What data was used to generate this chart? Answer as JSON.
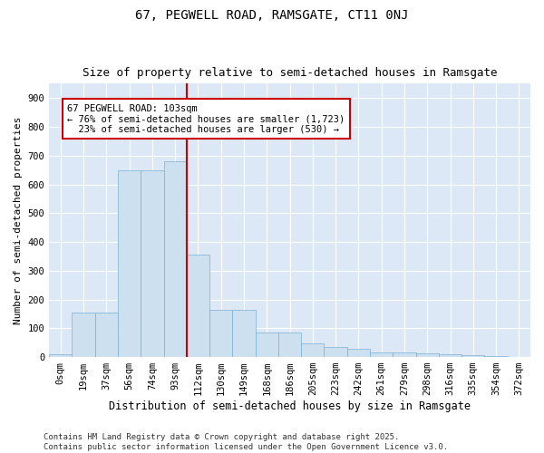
{
  "title1": "67, PEGWELL ROAD, RAMSGATE, CT11 0NJ",
  "title2": "Size of property relative to semi-detached houses in Ramsgate",
  "xlabel": "Distribution of semi-detached houses by size in Ramsgate",
  "ylabel": "Number of semi-detached properties",
  "bar_labels": [
    "0sqm",
    "19sqm",
    "37sqm",
    "56sqm",
    "74sqm",
    "93sqm",
    "112sqm",
    "130sqm",
    "149sqm",
    "168sqm",
    "186sqm",
    "205sqm",
    "223sqm",
    "242sqm",
    "261sqm",
    "279sqm",
    "298sqm",
    "316sqm",
    "335sqm",
    "354sqm",
    "372sqm"
  ],
  "bar_heights": [
    10,
    155,
    155,
    650,
    650,
    680,
    355,
    165,
    165,
    85,
    85,
    47,
    35,
    30,
    17,
    17,
    12,
    10,
    5,
    2,
    0
  ],
  "bar_color": "#cce0f0",
  "bar_edge_color": "#7ab0d4",
  "background_color": "#dce8f5",
  "grid_color": "#ffffff",
  "vline_x": 5.5,
  "vline_color": "#cc0000",
  "annotation_line1": "67 PEGWELL ROAD: 103sqm",
  "annotation_line2": "← 76% of semi-detached houses are smaller (1,723)",
  "annotation_line3": "  23% of semi-detached houses are larger (530) →",
  "annotation_box_color": "#ffffff",
  "annotation_box_edge": "#cc0000",
  "ylim": [
    0,
    950
  ],
  "yticks": [
    0,
    100,
    200,
    300,
    400,
    500,
    600,
    700,
    800,
    900
  ],
  "footer_text": "Contains HM Land Registry data © Crown copyright and database right 2025.\nContains public sector information licensed under the Open Government Licence v3.0.",
  "title1_fontsize": 10,
  "title2_fontsize": 9,
  "xlabel_fontsize": 8.5,
  "ylabel_fontsize": 8,
  "tick_fontsize": 7.5,
  "annotation_fontsize": 7.5,
  "footer_fontsize": 6.5
}
